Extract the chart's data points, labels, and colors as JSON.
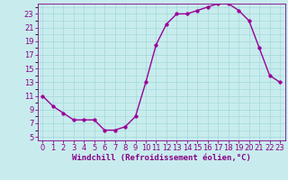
{
  "x": [
    0,
    1,
    2,
    3,
    4,
    5,
    6,
    7,
    8,
    9,
    10,
    11,
    12,
    13,
    14,
    15,
    16,
    17,
    18,
    19,
    20,
    21,
    22,
    23
  ],
  "y": [
    11,
    9.5,
    8.5,
    7.5,
    7.5,
    7.5,
    6,
    6,
    6.5,
    8,
    13,
    18.5,
    21.5,
    23,
    23,
    23.5,
    24,
    24.5,
    24.5,
    23.5,
    22,
    18,
    14,
    13
  ],
  "line_color": "#990099",
  "marker_color": "#990099",
  "bg_color": "#c8eced",
  "grid_color": "#a0d8d8",
  "tick_color": "#880088",
  "xlabel": "Windchill (Refroidissement éolien,°C)",
  "xlim": [
    -0.5,
    23.5
  ],
  "ylim": [
    4.5,
    24.5
  ],
  "yticks": [
    5,
    7,
    9,
    11,
    13,
    15,
    17,
    19,
    21,
    23
  ],
  "xticks": [
    0,
    1,
    2,
    3,
    4,
    5,
    6,
    7,
    8,
    9,
    10,
    11,
    12,
    13,
    14,
    15,
    16,
    17,
    18,
    19,
    20,
    21,
    22,
    23
  ],
  "xlabel_fontsize": 6.5,
  "tick_fontsize": 6,
  "marker_size": 2.5,
  "line_width": 1.0
}
